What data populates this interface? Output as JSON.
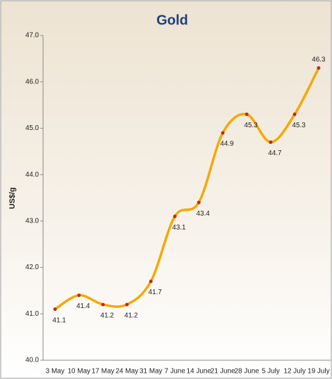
{
  "chart_data": {
    "type": "line",
    "title": "Gold",
    "y_label": "US$/g",
    "categories": [
      "3 May",
      "10 May",
      "17 May",
      "24 May",
      "31 May",
      "7 June",
      "14 June",
      "21 June",
      "28 June",
      "5 July",
      "12 July",
      "19 July"
    ],
    "values": [
      41.1,
      41.4,
      41.2,
      41.2,
      41.7,
      43.1,
      43.4,
      44.9,
      45.3,
      44.7,
      45.3,
      46.3
    ],
    "color": "#f5a800",
    "marker_color": "#c0281c",
    "ylim": [
      40,
      47
    ],
    "yticks": [
      {
        "value": 40,
        "label": "40.0"
      },
      {
        "value": 41,
        "label": "41.0"
      },
      {
        "value": 42,
        "label": "42.0"
      },
      {
        "value": 43,
        "label": "43.0"
      },
      {
        "value": 44,
        "label": "44.0"
      },
      {
        "value": 45,
        "label": "45.0"
      },
      {
        "value": 46,
        "label": "46.0"
      },
      {
        "value": 47,
        "label": "47.0"
      }
    ]
  }
}
